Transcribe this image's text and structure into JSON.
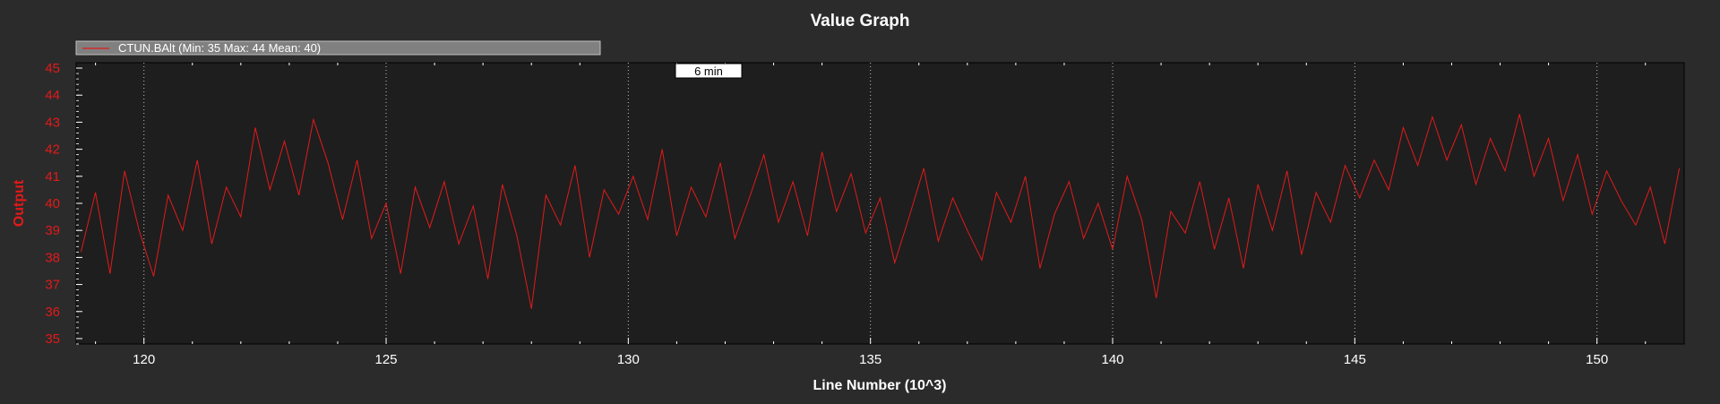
{
  "chart_data": {
    "type": "line",
    "title": "Value Graph",
    "xlabel": "Line Number (10^3)",
    "ylabel": "Output",
    "xlim": [
      118.6,
      151.8
    ],
    "ylim": [
      34.8,
      45.2
    ],
    "x_ticks": [
      "120",
      "125",
      "130",
      "135",
      "140",
      "145",
      "150"
    ],
    "y_ticks": [
      "35",
      "36",
      "37",
      "38",
      "39",
      "40",
      "41",
      "42",
      "43",
      "44",
      "45"
    ],
    "grid": true,
    "legend": {
      "placement": "top-left",
      "entries": [
        "CTUN.BAlt (Min: 35 Max: 44 Mean: 40)"
      ]
    },
    "annotation": "6 min",
    "colors": {
      "series": "#e31a1a",
      "background": "#2b2b2b",
      "plot_area": "#1e1e1e",
      "legend_box": "#808080"
    },
    "series": [
      {
        "name": "CTUN.BAlt",
        "x": [
          118.7,
          119.0,
          119.3,
          119.6,
          119.9,
          120.2,
          120.5,
          120.8,
          121.1,
          121.4,
          121.7,
          122.0,
          122.3,
          122.6,
          122.9,
          123.2,
          123.5,
          123.8,
          124.1,
          124.4,
          124.7,
          125.0,
          125.3,
          125.6,
          125.9,
          126.2,
          126.5,
          126.8,
          127.1,
          127.4,
          127.7,
          128.0,
          128.3,
          128.6,
          128.9,
          129.2,
          129.5,
          129.8,
          130.1,
          130.4,
          130.7,
          131.0,
          131.3,
          131.6,
          131.9,
          132.2,
          132.5,
          132.8,
          133.1,
          133.4,
          133.7,
          134.0,
          134.3,
          134.6,
          134.9,
          135.2,
          135.5,
          135.8,
          136.1,
          136.4,
          136.7,
          137.0,
          137.3,
          137.6,
          137.9,
          138.2,
          138.5,
          138.8,
          139.1,
          139.4,
          139.7,
          140.0,
          140.3,
          140.6,
          140.9,
          141.2,
          141.5,
          141.8,
          142.1,
          142.4,
          142.7,
          143.0,
          143.3,
          143.6,
          143.9,
          144.2,
          144.5,
          144.8,
          145.1,
          145.4,
          145.7,
          146.0,
          146.3,
          146.6,
          146.9,
          147.2,
          147.5,
          147.8,
          148.1,
          148.4,
          148.7,
          149.0,
          149.3,
          149.6,
          149.9,
          150.2,
          150.5,
          150.8,
          151.1,
          151.4,
          151.7
        ],
        "values": [
          38.2,
          40.4,
          37.4,
          41.2,
          39.0,
          37.3,
          40.3,
          39.0,
          41.6,
          38.5,
          40.6,
          39.5,
          42.8,
          40.5,
          42.3,
          40.3,
          43.1,
          41.5,
          39.4,
          41.6,
          38.7,
          40.0,
          37.4,
          40.6,
          39.1,
          40.8,
          38.5,
          39.9,
          37.2,
          40.7,
          38.8,
          36.1,
          40.3,
          39.2,
          41.4,
          38.0,
          40.5,
          39.6,
          41.0,
          39.4,
          42.0,
          38.8,
          40.6,
          39.5,
          41.5,
          38.7,
          40.2,
          41.8,
          39.3,
          40.8,
          38.8,
          41.9,
          39.7,
          41.1,
          38.9,
          40.2,
          37.8,
          39.5,
          41.3,
          38.6,
          40.2,
          39.0,
          37.9,
          40.4,
          39.3,
          41.0,
          37.6,
          39.6,
          40.8,
          38.7,
          40.0,
          38.3,
          41.0,
          39.4,
          36.5,
          39.7,
          38.9,
          40.8,
          38.3,
          40.2,
          37.6,
          40.7,
          39.0,
          41.2,
          38.1,
          40.4,
          39.3,
          41.4,
          40.2,
          41.6,
          40.5,
          42.8,
          41.4,
          43.2,
          41.6,
          42.9,
          40.7,
          42.4,
          41.2,
          43.3,
          41.0,
          42.4,
          40.1,
          41.8,
          39.6,
          41.2,
          40.1,
          39.2,
          40.6,
          38.5,
          41.3
        ]
      }
    ]
  }
}
